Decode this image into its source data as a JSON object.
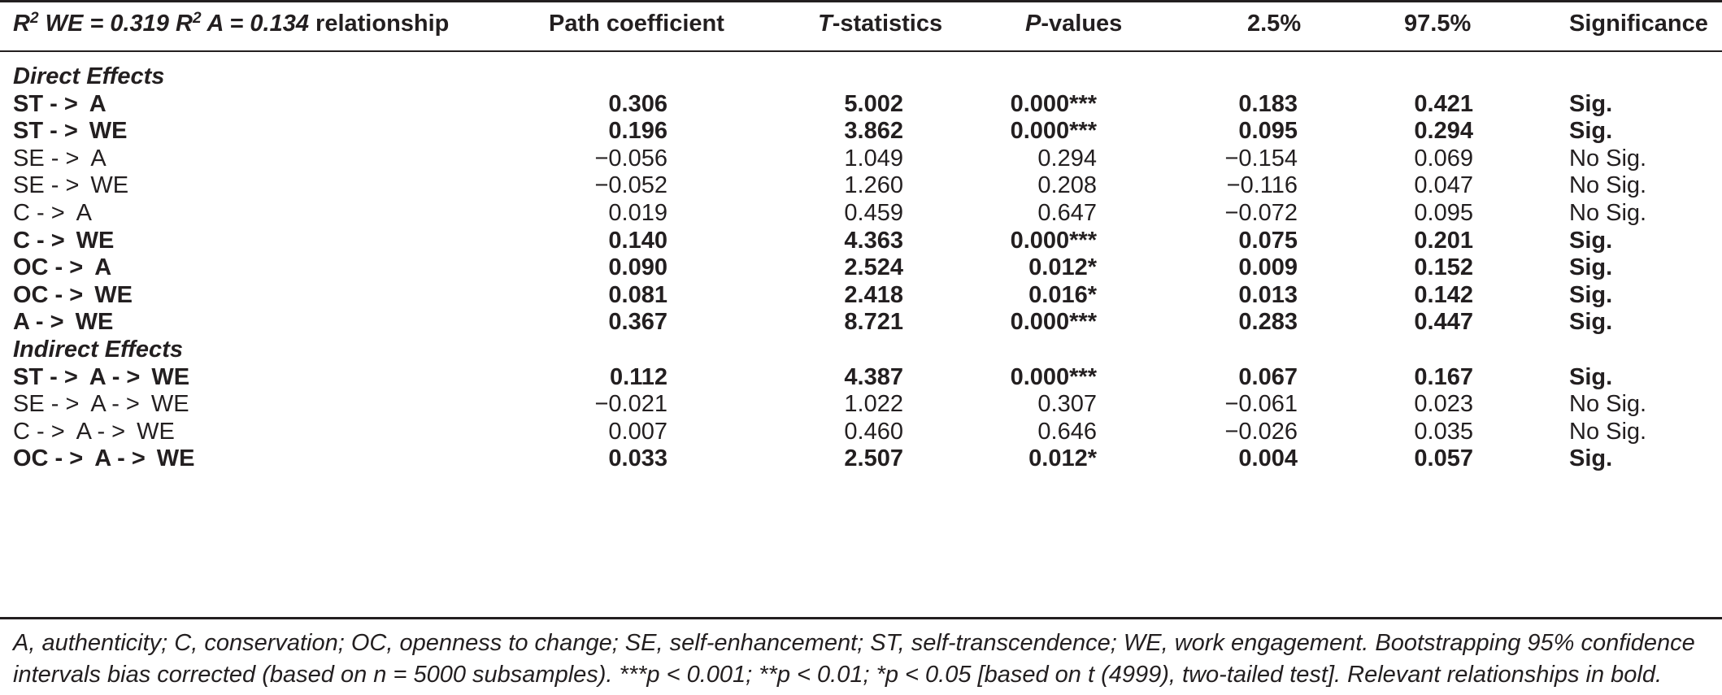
{
  "header": {
    "title_parts": [
      "R",
      "2",
      " WE = 0.319 R",
      "2",
      " A = 0.134",
      " relationship"
    ],
    "columns": [
      "Path coefficient",
      "T",
      "-statistics",
      "P",
      "-values",
      "2.5%",
      "97.5%",
      "Significance"
    ]
  },
  "sections": [
    {
      "title": "Direct Effects",
      "rows": [
        {
          "relationship": [
            "ST - >",
            "A"
          ],
          "path": "0.306",
          "t": "5.002",
          "p": "0.000***",
          "ci_low": "0.183",
          "ci_high": "0.421",
          "significance": "Sig.",
          "bold": true
        },
        {
          "relationship": [
            "ST - >",
            "WE"
          ],
          "path": "0.196",
          "t": "3.862",
          "p": "0.000***",
          "ci_low": "0.095",
          "ci_high": "0.294",
          "significance": "Sig.",
          "bold": true
        },
        {
          "relationship": [
            "SE - >",
            "A"
          ],
          "path": "−0.056",
          "t": "1.049",
          "p": "0.294",
          "ci_low": "−0.154",
          "ci_high": "0.069",
          "significance": "No Sig.",
          "bold": false
        },
        {
          "relationship": [
            "SE - >",
            "WE"
          ],
          "path": "−0.052",
          "t": "1.260",
          "p": "0.208",
          "ci_low": "−0.116",
          "ci_high": "0.047",
          "significance": "No Sig.",
          "bold": false
        },
        {
          "relationship": [
            "C - >",
            "A"
          ],
          "path": "0.019",
          "t": "0.459",
          "p": "0.647",
          "ci_low": "−0.072",
          "ci_high": "0.095",
          "significance": "No Sig.",
          "bold": false
        },
        {
          "relationship": [
            "C - >",
            "WE"
          ],
          "path": "0.140",
          "t": "4.363",
          "p": "0.000***",
          "ci_low": "0.075",
          "ci_high": "0.201",
          "significance": "Sig.",
          "bold": true
        },
        {
          "relationship": [
            "OC - >",
            "A"
          ],
          "path": "0.090",
          "t": "2.524",
          "p": "0.012*",
          "ci_low": "0.009",
          "ci_high": "0.152",
          "significance": "Sig.",
          "bold": true
        },
        {
          "relationship": [
            "OC - >",
            "WE"
          ],
          "path": "0.081",
          "t": "2.418",
          "p": "0.016*",
          "ci_low": "0.013",
          "ci_high": "0.142",
          "significance": "Sig.",
          "bold": true
        },
        {
          "relationship": [
            "A - >",
            "WE"
          ],
          "path": "0.367",
          "t": "8.721",
          "p": "0.000***",
          "ci_low": "0.283",
          "ci_high": "0.447",
          "significance": "Sig.",
          "bold": true
        }
      ]
    },
    {
      "title": "Indirect Effects",
      "rows": [
        {
          "relationship": [
            "ST - >",
            "A - >",
            "WE"
          ],
          "path": "0.112",
          "t": "4.387",
          "p": "0.000***",
          "ci_low": "0.067",
          "ci_high": "0.167",
          "significance": "Sig.",
          "bold": true
        },
        {
          "relationship": [
            "SE - >",
            "A - >",
            "WE"
          ],
          "path": "−0.021",
          "t": "1.022",
          "p": "0.307",
          "ci_low": "−0.061",
          "ci_high": "0.023",
          "significance": "No Sig.",
          "bold": false
        },
        {
          "relationship": [
            "C - >",
            "A - >",
            "WE"
          ],
          "path": "0.007",
          "t": "0.460",
          "p": "0.646",
          "ci_low": "−0.026",
          "ci_high": "0.035",
          "significance": "No Sig.",
          "bold": false
        },
        {
          "relationship": [
            "OC - >",
            "A - >",
            "WE"
          ],
          "path": "0.033",
          "t": "2.507",
          "p": "0.012*",
          "ci_low": "0.004",
          "ci_high": "0.057",
          "significance": "Sig.",
          "bold": true
        }
      ]
    }
  ],
  "footnote": "A, authenticity; C, conservation; OC, openness to change; SE, self-enhancement; ST, self-transcendence; WE, work engagement. Bootstrapping 95% confidence intervals bias corrected (based on n = 5000 subsamples). ***p < 0.001; **p < 0.01; *p < 0.05 [based on t (4999), two-tailed test]. Relevant relationships in bold."
}
